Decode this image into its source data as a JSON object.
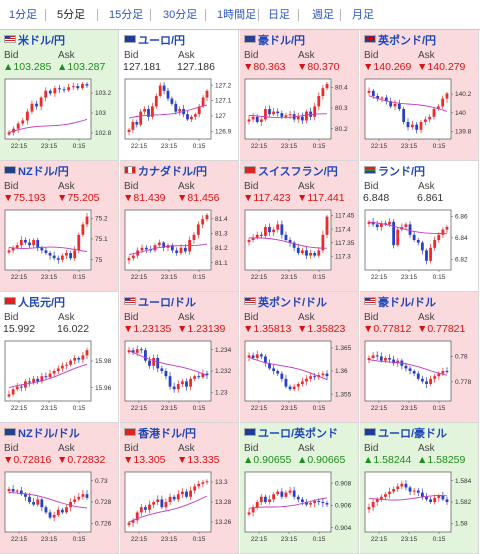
{
  "tabs": [
    {
      "label": "1分足",
      "active": false
    },
    {
      "label": "5分足",
      "active": true
    },
    {
      "label": "15分足",
      "active": false
    },
    {
      "label": "30分足",
      "active": false
    },
    {
      "label": "1時間足",
      "active": false
    },
    {
      "label": "日足",
      "active": false
    },
    {
      "label": "週足",
      "active": false
    },
    {
      "label": "月足",
      "active": false
    }
  ],
  "colors": {
    "up": "#1c8f1c",
    "down": "#d11",
    "ma_line": "#c039c0",
    "up_candle": "#ee2a2a",
    "down_candle": "#2a3fc8",
    "up_bg": "#e2f4dc",
    "down_bg": "#fadadd"
  },
  "bid_label": "Bid",
  "ask_label": "Ask",
  "pairs": [
    {
      "name": "米ドル/円",
      "flag": "us",
      "dir": "up",
      "bid": "103.285",
      "ask": "103.287",
      "chart_data": {
        "type": "candlestick",
        "x_labels": [
          "22:15",
          "23:15",
          "0:15"
        ],
        "y_ticks": [
          103.2,
          103,
          102.8
        ],
        "ylim": [
          102.74,
          103.34
        ],
        "shape": [
          0.05,
          0.12,
          0.22,
          0.28,
          0.45,
          0.6,
          0.55,
          0.72,
          0.85,
          0.8,
          0.9,
          0.88,
          0.86,
          0.92,
          0.94,
          0.9,
          0.98,
          0.95
        ],
        "ma": [
          0.05,
          0.3
        ],
        "mdir": "up"
      }
    },
    {
      "name": "ユーロ/円",
      "flag": "eu",
      "dir": "flat",
      "bid": "127.181",
      "ask": "127.186",
      "chart_data": {
        "type": "candlestick",
        "x_labels": [
          "22:15",
          "23:15",
          "0:15"
        ],
        "y_ticks": [
          127.2,
          127.1,
          127,
          126.9
        ],
        "ylim": [
          126.85,
          127.24
        ],
        "shape": [
          0.1,
          0.25,
          0.2,
          0.45,
          0.5,
          0.35,
          0.55,
          0.75,
          0.95,
          0.85,
          0.7,
          0.6,
          0.45,
          0.5,
          0.4,
          0.3,
          0.35,
          0.4,
          0.55,
          0.72,
          0.85
        ],
        "ma": [
          0.3,
          0.55
        ],
        "mdir": "flat"
      }
    },
    {
      "name": "豪ドル/円",
      "flag": "au",
      "dir": "down",
      "bid": "80.363",
      "ask": "80.370",
      "chart_data": {
        "type": "candlestick",
        "x_labels": [
          "22:15",
          "23:15",
          "0:15"
        ],
        "y_ticks": [
          80.4,
          80.3,
          80.2
        ],
        "ylim": [
          80.15,
          80.44
        ],
        "shape": [
          0.3,
          0.35,
          0.25,
          0.3,
          0.5,
          0.4,
          0.45,
          0.42,
          0.35,
          0.38,
          0.4,
          0.3,
          0.35,
          0.28,
          0.45,
          0.35,
          0.55,
          0.75,
          0.9,
          0.98
        ],
        "ma": [
          0.35,
          0.38
        ],
        "mdir": "flat"
      }
    },
    {
      "name": "英ポンド/円",
      "flag": "gb",
      "dir": "down",
      "bid": "140.269",
      "ask": "140.279",
      "chart_data": {
        "type": "candlestick",
        "x_labels": [
          "22:15",
          "23:15",
          "0:15"
        ],
        "y_ticks": [
          140.2,
          140,
          139.8
        ],
        "ylim": [
          139.72,
          140.36
        ],
        "shape": [
          0.85,
          0.75,
          0.7,
          0.72,
          0.65,
          0.55,
          0.6,
          0.5,
          0.25,
          0.15,
          0.2,
          0.1,
          0.25,
          0.3,
          0.35,
          0.5,
          0.55,
          0.7,
          0.8
        ],
        "ma": [
          0.75,
          0.45
        ],
        "mdir": "down"
      }
    },
    {
      "name": "NZドル/円",
      "flag": "nz",
      "dir": "down",
      "bid": "75.193",
      "ask": "75.205",
      "chart_data": {
        "type": "candlestick",
        "x_labels": [
          "22:15",
          "23:15",
          "0:15"
        ],
        "y_ticks": [
          75.2,
          75.1,
          75
        ],
        "ylim": [
          74.95,
          75.24
        ],
        "shape": [
          0.3,
          0.35,
          0.4,
          0.5,
          0.45,
          0.4,
          0.5,
          0.35,
          0.3,
          0.25,
          0.2,
          0.15,
          0.12,
          0.2,
          0.25,
          0.15,
          0.3,
          0.6,
          0.8,
          0.95
        ],
        "ma": [
          0.38,
          0.3
        ],
        "mdir": "flat"
      }
    },
    {
      "name": "カナダドル/円",
      "flag": "ca",
      "dir": "down",
      "bid": "81.439",
      "ask": "81.456",
      "chart_data": {
        "type": "candlestick",
        "x_labels": [
          "22:15",
          "23:15",
          "0:15"
        ],
        "y_ticks": [
          81.4,
          81.3,
          81.2,
          81.1
        ],
        "ylim": [
          81.05,
          81.46
        ],
        "shape": [
          0.15,
          0.2,
          0.3,
          0.35,
          0.32,
          0.3,
          0.4,
          0.45,
          0.35,
          0.4,
          0.3,
          0.25,
          0.35,
          0.28,
          0.5,
          0.6,
          0.8,
          0.9,
          0.98
        ],
        "ma": [
          0.25,
          0.45
        ],
        "mdir": "up"
      }
    },
    {
      "name": "スイスフラン/円",
      "flag": "ch",
      "dir": "down",
      "bid": "117.423",
      "ask": "117.441",
      "chart_data": {
        "type": "candlestick",
        "x_labels": [
          "22:15",
          "23:15",
          "0:15"
        ],
        "y_ticks": [
          117.45,
          117.4,
          117.35,
          117.3
        ],
        "ylim": [
          117.25,
          117.47
        ],
        "shape": [
          0.5,
          0.55,
          0.6,
          0.58,
          0.75,
          0.65,
          0.7,
          0.8,
          0.6,
          0.5,
          0.45,
          0.35,
          0.25,
          0.3,
          0.2,
          0.25,
          0.2,
          0.3,
          0.6,
          0.95
        ],
        "ma": [
          0.55,
          0.35
        ],
        "mdir": "down"
      }
    },
    {
      "name": "ランド/円",
      "flag": "za",
      "dir": "flat",
      "bid": "6.848",
      "ask": "6.861",
      "chart_data": {
        "type": "candlestick",
        "x_labels": [
          "22:15",
          "23:15",
          "0:15"
        ],
        "y_ticks": [
          6.86,
          6.84,
          6.82
        ],
        "ylim": [
          6.81,
          6.866
        ],
        "shape": [
          0.85,
          0.8,
          0.75,
          0.82,
          0.8,
          0.85,
          0.4,
          0.7,
          0.75,
          0.8,
          0.6,
          0.5,
          0.45,
          0.3,
          0.1,
          0.35,
          0.5,
          0.6,
          0.7,
          0.75
        ],
        "ma": [
          0.82,
          0.6
        ],
        "mdir": "down"
      }
    },
    {
      "name": "人民元/円",
      "flag": "cn",
      "dir": "flat",
      "bid": "15.992",
      "ask": "16.022",
      "chart_data": {
        "type": "candlestick",
        "x_labels": [
          "22:15",
          "23:15",
          "0:15"
        ],
        "y_ticks": [
          15.98,
          15.96
        ],
        "ylim": [
          15.95,
          15.995
        ],
        "shape": [
          0.05,
          0.15,
          0.2,
          0.18,
          0.3,
          0.28,
          0.35,
          0.3,
          0.4,
          0.38,
          0.45,
          0.5,
          0.55,
          0.6,
          0.62,
          0.7,
          0.75,
          0.72,
          0.8,
          0.9
        ],
        "ma": [
          0.15,
          0.6
        ],
        "mdir": "up"
      }
    },
    {
      "name": "ユーロ/ドル",
      "flag": "us",
      "dir": "down",
      "bid": "1.23135",
      "ask": "1.23139",
      "chart_data": {
        "type": "candlestick",
        "x_labels": [
          "22:15",
          "23:15",
          "0:15"
        ],
        "y_ticks": [
          1.234,
          1.232,
          1.23
        ],
        "ylim": [
          1.2292,
          1.2348
        ],
        "shape": [
          0.9,
          0.85,
          0.92,
          0.9,
          0.7,
          0.6,
          0.75,
          0.55,
          0.5,
          0.4,
          0.2,
          0.15,
          0.25,
          0.3,
          0.2,
          0.35,
          0.4,
          0.38,
          0.45,
          0.42
        ],
        "ma": [
          0.88,
          0.4
        ],
        "mdir": "down"
      }
    },
    {
      "name": "英ポンド/ドル",
      "flag": "us",
      "dir": "down",
      "bid": "1.35813",
      "ask": "1.35823",
      "chart_data": {
        "type": "candlestick",
        "x_labels": [
          "22:15",
          "23:15",
          "0:15"
        ],
        "y_ticks": [
          1.365,
          1.36,
          1.355
        ],
        "ylim": [
          1.3535,
          1.3665
        ],
        "shape": [
          0.8,
          0.75,
          0.82,
          0.78,
          0.65,
          0.55,
          0.5,
          0.45,
          0.35,
          0.2,
          0.15,
          0.2,
          0.25,
          0.3,
          0.35,
          0.4,
          0.38,
          0.42,
          0.45,
          0.4
        ],
        "ma": [
          0.78,
          0.35
        ],
        "mdir": "down"
      }
    },
    {
      "name": "豪ドル/ドル",
      "flag": "us",
      "dir": "down",
      "bid": "0.77812",
      "ask": "0.77821",
      "chart_data": {
        "type": "candlestick",
        "x_labels": [
          "22:15",
          "23:15",
          "0:15"
        ],
        "y_ticks": [
          0.78,
          0.778
        ],
        "ylim": [
          0.7765,
          0.7812
        ],
        "shape": [
          0.75,
          0.8,
          0.78,
          0.7,
          0.75,
          0.72,
          0.65,
          0.7,
          0.6,
          0.55,
          0.5,
          0.45,
          0.35,
          0.3,
          0.25,
          0.35,
          0.4,
          0.45,
          0.5,
          0.48
        ],
        "ma": [
          0.75,
          0.45
        ],
        "mdir": "down"
      }
    },
    {
      "name": "NZドル/ドル",
      "flag": "nz",
      "dir": "down",
      "bid": "0.72816",
      "ask": "0.72832",
      "chart_data": {
        "type": "candlestick",
        "x_labels": [
          "22:15",
          "23:15",
          "0:15"
        ],
        "y_ticks": [
          0.73,
          0.728,
          0.726
        ],
        "ylim": [
          0.7252,
          0.7308
        ],
        "shape": [
          0.75,
          0.7,
          0.72,
          0.65,
          0.6,
          0.5,
          0.45,
          0.55,
          0.4,
          0.3,
          0.2,
          0.25,
          0.35,
          0.3,
          0.4,
          0.5,
          0.55,
          0.6,
          0.65,
          0.58
        ],
        "ma": [
          0.7,
          0.4
        ],
        "mdir": "down"
      }
    },
    {
      "name": "香港ドル/円",
      "flag": "hk",
      "dir": "down",
      "bid": "13.305",
      "ask": "13.335",
      "chart_data": {
        "type": "candlestick",
        "x_labels": [
          "22:15",
          "23:15",
          "0:15"
        ],
        "y_ticks": [
          13.3,
          13.28,
          13.26
        ],
        "ylim": [
          13.25,
          13.31
        ],
        "shape": [
          0.1,
          0.15,
          0.3,
          0.4,
          0.35,
          0.45,
          0.5,
          0.55,
          0.4,
          0.5,
          0.6,
          0.55,
          0.65,
          0.7,
          0.6,
          0.72,
          0.8,
          0.85,
          0.88,
          0.9
        ],
        "ma": [
          0.1,
          0.6
        ],
        "mdir": "up"
      }
    },
    {
      "name": "ユーロ/英ポンド",
      "flag": "eu",
      "dir": "up",
      "bid": "0.90655",
      "ask": "0.90665",
      "chart_data": {
        "type": "candlestick",
        "x_labels": [
          "22:15",
          "23:15",
          "0:15"
        ],
        "y_ticks": [
          0.908,
          0.906,
          0.904
        ],
        "ylim": [
          0.9036,
          0.909
        ],
        "shape": [
          0.3,
          0.4,
          0.5,
          0.6,
          0.5,
          0.55,
          0.65,
          0.7,
          0.6,
          0.68,
          0.72,
          0.6,
          0.55,
          0.5,
          0.45,
          0.48,
          0.52,
          0.5,
          0.48,
          0.45
        ],
        "ma": [
          0.35,
          0.55
        ],
        "mdir": "flat"
      }
    },
    {
      "name": "ユーロ/豪ドル",
      "flag": "eu",
      "dir": "up",
      "bid": "1.58244",
      "ask": "1.58259",
      "chart_data": {
        "type": "candlestick",
        "x_labels": [
          "22:15",
          "23:15",
          "0:15"
        ],
        "y_ticks": [
          1.584,
          1.582,
          1.58
        ],
        "ylim": [
          1.5792,
          1.5848
        ],
        "shape": [
          0.4,
          0.5,
          0.55,
          0.6,
          0.65,
          0.7,
          0.75,
          0.8,
          0.85,
          0.78,
          0.7,
          0.72,
          0.68,
          0.6,
          0.55,
          0.5,
          0.58,
          0.62,
          0.55,
          0.5
        ],
        "ma": [
          0.55,
          0.6
        ],
        "mdir": "flat"
      }
    }
  ]
}
